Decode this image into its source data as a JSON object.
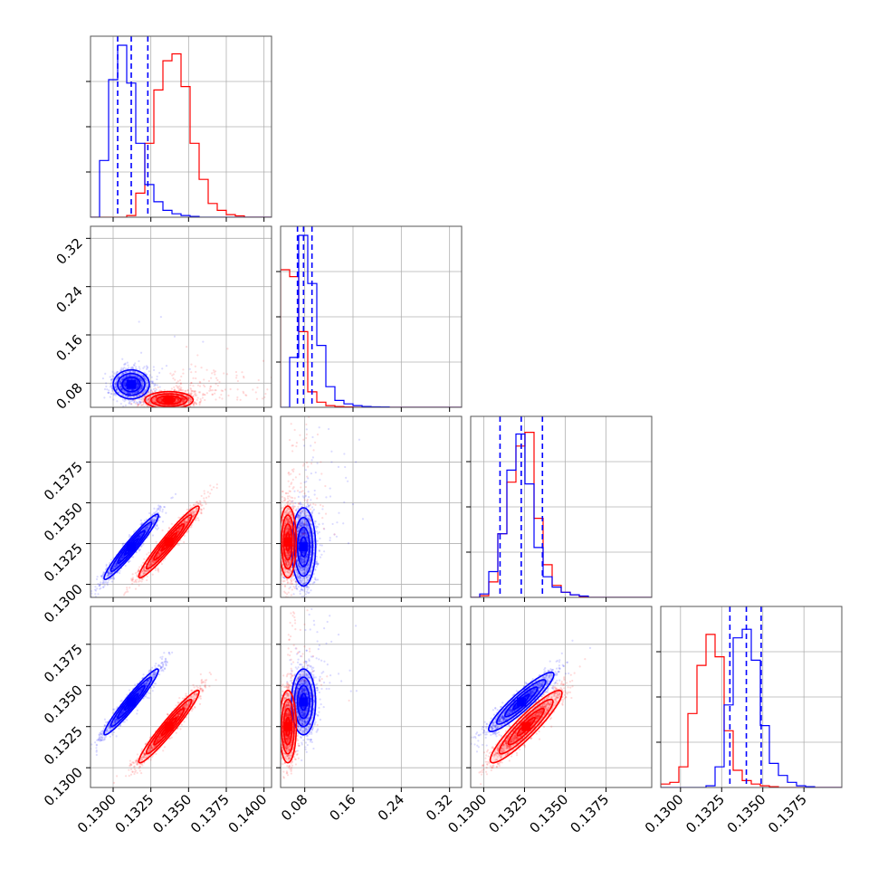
{
  "chart_data": {
    "type": "corner",
    "colors": {
      "series_a": "#0000ff",
      "series_b": "#ff0000",
      "grid": "#b0b0b0",
      "frame": "#000000"
    },
    "grid": true,
    "series": [
      {
        "key": "a",
        "color": "#0000ff",
        "means": [
          0.1312,
          0.078,
          0.1323,
          0.134
        ],
        "quantiles_1d": [
          [
            0.1303,
            0.1312,
            0.1323
          ],
          [
            0.068,
            0.078,
            0.092
          ],
          [
            0.131,
            0.1323,
            0.1336
          ],
          [
            0.133,
            0.134,
            0.1349
          ]
        ]
      },
      {
        "key": "b",
        "color": "#ff0000",
        "means": [
          0.1337,
          0.052,
          0.1326,
          0.1325
        ]
      }
    ],
    "params": [
      {
        "range": [
          0.1285,
          0.1405
        ],
        "ticks": [
          "0.1300",
          "0.1325",
          "0.1350",
          "0.1375",
          "0.1400"
        ],
        "tick_values": [
          0.13,
          0.1325,
          0.135,
          0.1375,
          0.14
        ]
      },
      {
        "range": [
          0.04,
          0.34
        ],
        "ticks": [
          "0.08",
          "0.16",
          "0.24",
          "0.32"
        ],
        "tick_values": [
          0.08,
          0.16,
          0.24,
          0.32
        ]
      },
      {
        "range": [
          0.1292,
          0.1403
        ],
        "ticks": [
          "0.1300",
          "0.1325",
          "0.1350",
          "0.1375"
        ],
        "tick_values": [
          0.13,
          0.1325,
          0.135,
          0.1375
        ]
      },
      {
        "range": [
          0.1288,
          0.1398
        ],
        "ticks": [
          "0.1300",
          "0.1325",
          "0.1350",
          "0.1375"
        ],
        "tick_values": [
          0.13,
          0.1325,
          0.135,
          0.1375
        ]
      }
    ],
    "histograms": [
      {
        "a": [
          0.0,
          0.33,
          0.8,
          1.0,
          0.78,
          0.43,
          0.19,
          0.09,
          0.04,
          0.02,
          0.01,
          0.005,
          0,
          0,
          0,
          0,
          0,
          0,
          0,
          0
        ],
        "b": [
          0,
          0,
          0,
          0,
          0.01,
          0.14,
          0.43,
          0.74,
          0.91,
          0.95,
          0.76,
          0.43,
          0.22,
          0.08,
          0.04,
          0.015,
          0.008,
          0,
          0,
          0
        ]
      },
      {
        "a": [
          0.0,
          0.29,
          1.0,
          0.72,
          0.36,
          0.12,
          0.04,
          0.02,
          0.01,
          0.005,
          0.003,
          0.002,
          0,
          0,
          0,
          0,
          0,
          0,
          0,
          0
        ],
        "b": [
          0.8,
          0.76,
          0.44,
          0.09,
          0.03,
          0.01,
          0.005,
          0.002,
          0,
          0,
          0,
          0,
          0,
          0,
          0,
          0,
          0,
          0,
          0,
          0
        ]
      },
      {
        "a": [
          0.0,
          0.02,
          0.15,
          0.37,
          0.74,
          0.95,
          0.66,
          0.29,
          0.12,
          0.06,
          0.03,
          0.015,
          0.008,
          0,
          0,
          0,
          0,
          0,
          0,
          0
        ],
        "b": [
          0.0,
          0.01,
          0.09,
          0.37,
          0.67,
          0.88,
          0.96,
          0.46,
          0.19,
          0.07,
          0.03,
          0.015,
          0.005,
          0,
          0,
          0,
          0,
          0,
          0,
          0
        ],
        "bins": [
          0.1292,
          0.1403
        ]
      },
      {
        "a": [
          0,
          0,
          0,
          0,
          0,
          0.01,
          0.12,
          0.48,
          0.87,
          0.92,
          0.74,
          0.36,
          0.14,
          0.07,
          0.03,
          0.01,
          0.005,
          0,
          0,
          0
        ],
        "b": [
          0.02,
          0.03,
          0.12,
          0.43,
          0.71,
          0.89,
          0.76,
          0.33,
          0.1,
          0.04,
          0.02,
          0.01,
          0.005,
          0,
          0,
          0,
          0,
          0,
          0,
          0
        ]
      }
    ],
    "pairs": [
      {
        "row": 1,
        "col": 0,
        "a": {
          "mean": [
            0.1312,
            0.078
          ],
          "sd": [
            0.0006,
            0.012
          ],
          "rho": 0.0,
          "tail": 0.02
        },
        "b": {
          "mean": [
            0.1337,
            0.052
          ],
          "sd": [
            0.0008,
            0.007
          ],
          "rho": 0.0,
          "tail": 0.1
        }
      },
      {
        "row": 2,
        "col": 0,
        "a": {
          "mean": [
            0.1312,
            0.1323
          ],
          "sd": [
            0.0009,
            0.001
          ],
          "rho": 0.96,
          "tail": 0.0
        },
        "b": {
          "mean": [
            0.1337,
            0.1326
          ],
          "sd": [
            0.001,
            0.0011
          ],
          "rho": 0.96,
          "tail": 0.0
        }
      },
      {
        "row": 2,
        "col": 1,
        "a": {
          "mean": [
            0.078,
            0.1323
          ],
          "sd": [
            0.01,
            0.0012
          ],
          "rho": 0.0,
          "tail": 0.04
        },
        "b": {
          "mean": [
            0.052,
            0.1326
          ],
          "sd": [
            0.007,
            0.0011
          ],
          "rho": 0.0,
          "tail": 0.1
        }
      },
      {
        "row": 3,
        "col": 0,
        "a": {
          "mean": [
            0.1312,
            0.134
          ],
          "sd": [
            0.0009,
            0.001
          ],
          "rho": 0.96,
          "tail": 0.0
        },
        "b": {
          "mean": [
            0.1337,
            0.1325
          ],
          "sd": [
            0.001,
            0.0011
          ],
          "rho": 0.96,
          "tail": 0.0
        }
      },
      {
        "row": 3,
        "col": 1,
        "a": {
          "mean": [
            0.078,
            0.134
          ],
          "sd": [
            0.01,
            0.001
          ],
          "rho": 0.0,
          "tail": 0.04
        },
        "b": {
          "mean": [
            0.052,
            0.1325
          ],
          "sd": [
            0.007,
            0.0011
          ],
          "rho": 0.0,
          "tail": 0.1
        }
      },
      {
        "row": 3,
        "col": 2,
        "a": {
          "mean": [
            0.1323,
            0.134
          ],
          "sd": [
            0.001,
            0.0009
          ],
          "rho": 0.92,
          "tail": 0.0
        },
        "b": {
          "mean": [
            0.1326,
            0.1325
          ],
          "sd": [
            0.0011,
            0.0011
          ],
          "rho": 0.92,
          "tail": 0.0
        }
      }
    ]
  }
}
